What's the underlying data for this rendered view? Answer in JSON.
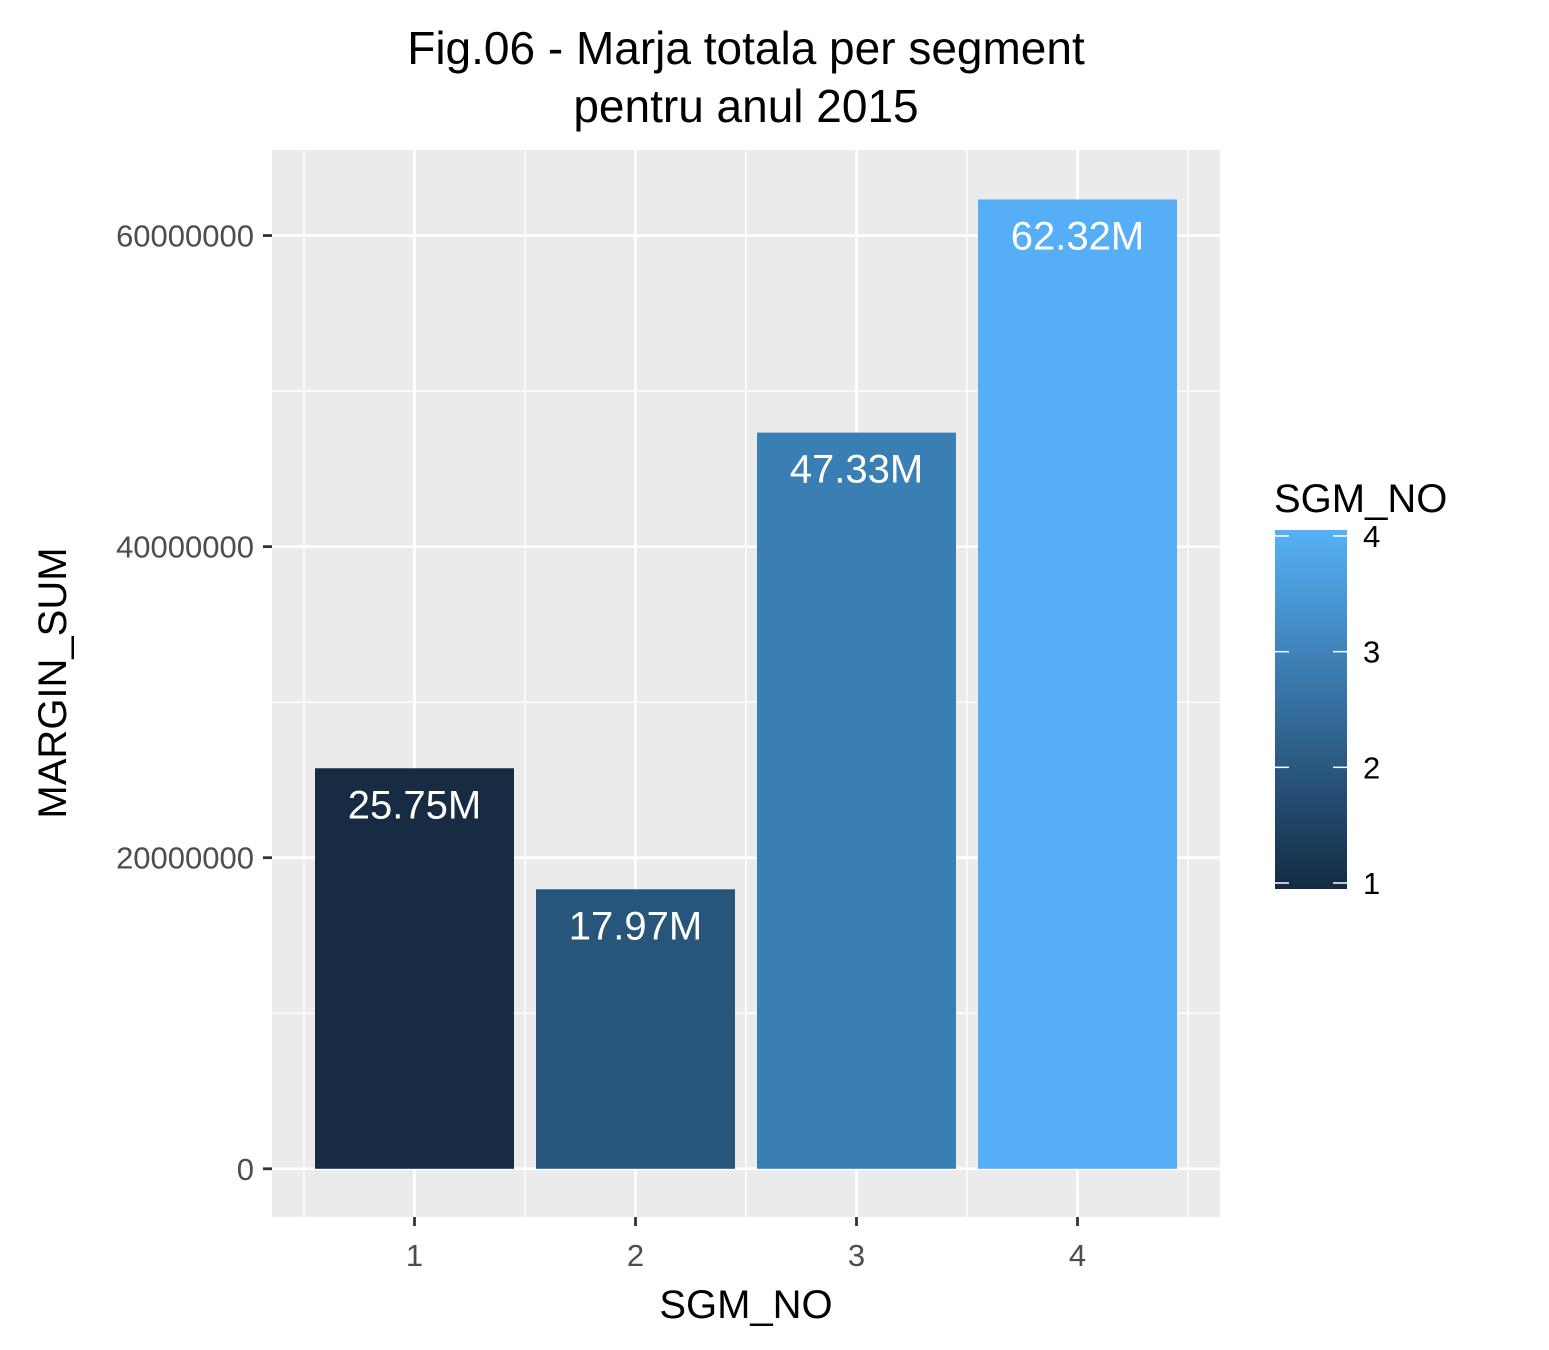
{
  "chart_data": {
    "type": "bar",
    "title_lines": [
      "Fig.06 - Marja totala per segment",
      "pentru anul 2015"
    ],
    "xlabel": "SGM_NO",
    "ylabel": "MARGIN_SUM",
    "categories": [
      "1",
      "2",
      "3",
      "4"
    ],
    "values": [
      25750000,
      17970000,
      47330000,
      62320000
    ],
    "data_labels": [
      "25.75M",
      "17.97M",
      "47.33M",
      "62.32M"
    ],
    "bar_colors": [
      "#172B43",
      "#28557A",
      "#3A7FB3",
      "#56AFF6"
    ],
    "ylim": [
      -3100000,
      65500000
    ],
    "yticks": [
      0,
      20000000,
      40000000,
      60000000
    ],
    "ytick_labels": [
      "0",
      "20000000",
      "40000000",
      "60000000"
    ],
    "grid": true,
    "panel_background": "#EBEBEB",
    "legend": {
      "title": "SGM_NO",
      "placement": "right",
      "type": "colorbar",
      "range": [
        1,
        4
      ],
      "ticks": [
        "1",
        "2",
        "3",
        "4"
      ],
      "color_low": "#132B43",
      "color_high": "#56B1F7"
    }
  }
}
